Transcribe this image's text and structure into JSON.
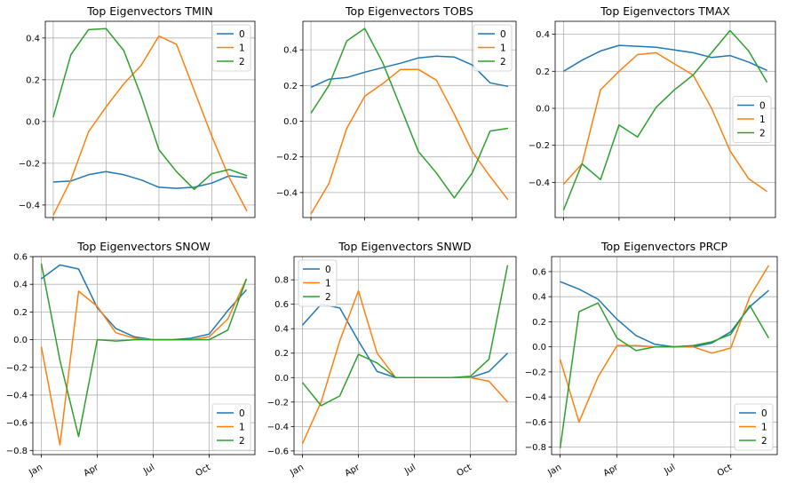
{
  "colors": {
    "series_0": "#1f77b4",
    "series_1": "#ff7f0e",
    "series_2": "#2ca02c",
    "grid": "#b0b0b0"
  },
  "chart_data": [
    {
      "type": "line",
      "title": "Top Eigenvectors TMIN",
      "x": [
        1,
        2,
        3,
        4,
        5,
        6,
        7,
        8,
        9,
        10,
        11,
        12
      ],
      "xticks": [],
      "xticklabels": [],
      "ylim": [
        -0.46,
        0.48
      ],
      "yticks": [
        -0.4,
        -0.2,
        0.0,
        0.2,
        0.4
      ],
      "yticklabels": [
        "−0.4",
        "−0.2",
        "0.0",
        "0.2",
        "0.4"
      ],
      "grid": true,
      "legend_location": "upper right",
      "series": [
        {
          "name": "0",
          "values": [
            -0.29,
            -0.285,
            -0.255,
            -0.24,
            -0.255,
            -0.28,
            -0.315,
            -0.32,
            -0.315,
            -0.295,
            -0.26,
            -0.27
          ]
        },
        {
          "name": "1",
          "values": [
            -0.45,
            -0.28,
            -0.05,
            0.07,
            0.18,
            0.27,
            0.41,
            0.37,
            0.15,
            -0.07,
            -0.27,
            -0.43
          ]
        },
        {
          "name": "2",
          "values": [
            0.02,
            0.32,
            0.44,
            0.445,
            0.34,
            0.12,
            -0.135,
            -0.24,
            -0.325,
            -0.25,
            -0.23,
            -0.26
          ]
        }
      ]
    },
    {
      "type": "line",
      "title": "Top Eigenvectors TOBS",
      "x": [
        1,
        2,
        3,
        4,
        5,
        6,
        7,
        8,
        9,
        10,
        11,
        12
      ],
      "xticks": [],
      "xticklabels": [],
      "ylim": [
        -0.54,
        0.56
      ],
      "yticks": [
        -0.4,
        -0.2,
        0.0,
        0.2,
        0.4
      ],
      "yticklabels": [
        "−0.4",
        "−0.2",
        "0.0",
        "0.2",
        "0.4"
      ],
      "grid": true,
      "legend_location": "upper right",
      "series": [
        {
          "name": "0",
          "values": [
            0.19,
            0.235,
            0.245,
            0.275,
            0.3,
            0.325,
            0.355,
            0.365,
            0.36,
            0.315,
            0.215,
            0.195
          ]
        },
        {
          "name": "1",
          "values": [
            -0.52,
            -0.35,
            -0.04,
            0.14,
            0.21,
            0.29,
            0.29,
            0.23,
            0.04,
            -0.17,
            -0.31,
            -0.44
          ]
        },
        {
          "name": "2",
          "values": [
            0.045,
            0.2,
            0.45,
            0.52,
            0.33,
            0.08,
            -0.17,
            -0.29,
            -0.43,
            -0.29,
            -0.055,
            -0.04
          ]
        }
      ]
    },
    {
      "type": "line",
      "title": "Top Eigenvectors TMAX",
      "x": [
        1,
        2,
        3,
        4,
        5,
        6,
        7,
        8,
        9,
        10,
        11,
        12
      ],
      "xticks": [],
      "xticklabels": [],
      "ylim": [
        -0.59,
        0.47
      ],
      "yticks": [
        -0.4,
        -0.2,
        0.0,
        0.2,
        0.4
      ],
      "yticklabels": [
        "−0.4",
        "−0.2",
        "0.0",
        "0.2",
        "0.4"
      ],
      "grid": true,
      "legend_location": "center right",
      "series": [
        {
          "name": "0",
          "values": [
            0.2,
            0.26,
            0.31,
            0.34,
            0.335,
            0.33,
            0.315,
            0.3,
            0.275,
            0.285,
            0.25,
            0.205
          ]
        },
        {
          "name": "1",
          "values": [
            -0.41,
            -0.3,
            0.1,
            0.2,
            0.29,
            0.3,
            0.24,
            0.18,
            0.0,
            -0.23,
            -0.38,
            -0.45
          ]
        },
        {
          "name": "2",
          "values": [
            -0.55,
            -0.3,
            -0.385,
            -0.09,
            -0.155,
            0.005,
            0.1,
            0.18,
            0.3,
            0.42,
            0.31,
            0.14
          ]
        }
      ]
    },
    {
      "type": "line",
      "title": "Top Eigenvectors SNOW",
      "x": [
        1,
        2,
        3,
        4,
        5,
        6,
        7,
        8,
        9,
        10,
        11,
        12
      ],
      "xticks": [
        1,
        4,
        7,
        10
      ],
      "xticklabels": [
        "Jan",
        "Apr",
        "Jul",
        "Oct"
      ],
      "ylim": [
        -0.83,
        0.6
      ],
      "yticks": [
        -0.8,
        -0.6,
        -0.4,
        -0.2,
        0.0,
        0.2,
        0.4,
        0.6
      ],
      "yticklabels": [
        "−0.8",
        "−0.6",
        "−0.4",
        "−0.2",
        "0.0",
        "0.2",
        "0.4",
        "0.6"
      ],
      "grid": true,
      "legend_location": "lower right",
      "series": [
        {
          "name": "0",
          "values": [
            0.44,
            0.54,
            0.51,
            0.23,
            0.08,
            0.02,
            0.0,
            0.0,
            0.01,
            0.04,
            0.21,
            0.36
          ]
        },
        {
          "name": "1",
          "values": [
            -0.05,
            -0.76,
            0.35,
            0.24,
            0.05,
            0.01,
            0.0,
            0.0,
            0.0,
            0.02,
            0.15,
            0.44
          ]
        },
        {
          "name": "2",
          "values": [
            0.55,
            -0.15,
            -0.7,
            0.0,
            -0.01,
            0.0,
            0.0,
            0.0,
            0.0,
            0.0,
            0.07,
            0.44
          ]
        }
      ]
    },
    {
      "type": "line",
      "title": "Top Eigenvectors SNWD",
      "x": [
        1,
        2,
        3,
        4,
        5,
        6,
        7,
        8,
        9,
        10,
        11,
        12
      ],
      "xticks": [
        1,
        4,
        7,
        10
      ],
      "xticklabels": [
        "Jan",
        "Apr",
        "Jul",
        "Oct"
      ],
      "ylim": [
        -0.63,
        0.99
      ],
      "yticks": [
        -0.6,
        -0.4,
        -0.2,
        0.0,
        0.2,
        0.4,
        0.6,
        0.8
      ],
      "yticklabels": [
        "−0.6",
        "−0.4",
        "−0.2",
        "0.0",
        "0.2",
        "0.4",
        "0.6",
        "0.8"
      ],
      "grid": true,
      "legend_location": "upper left",
      "series": [
        {
          "name": "0",
          "values": [
            0.43,
            0.6,
            0.57,
            0.3,
            0.05,
            0.0,
            0.0,
            0.0,
            0.0,
            0.0,
            0.05,
            0.2
          ]
        },
        {
          "name": "1",
          "values": [
            -0.54,
            -0.2,
            0.3,
            0.71,
            0.2,
            0.0,
            0.0,
            0.0,
            0.0,
            0.0,
            -0.03,
            -0.2
          ]
        },
        {
          "name": "2",
          "values": [
            -0.04,
            -0.23,
            -0.15,
            0.19,
            0.12,
            0.0,
            0.0,
            0.0,
            0.0,
            0.01,
            0.15,
            0.92
          ]
        }
      ]
    },
    {
      "type": "line",
      "title": "Top Eigenvectors PRCP",
      "x": [
        1,
        2,
        3,
        4,
        5,
        6,
        7,
        8,
        9,
        10,
        11,
        12
      ],
      "xticks": [
        1,
        4,
        7,
        10
      ],
      "xticklabels": [
        "Jan",
        "Apr",
        "Jul",
        "Oct"
      ],
      "ylim": [
        -0.86,
        0.72
      ],
      "yticks": [
        -0.8,
        -0.6,
        -0.4,
        -0.2,
        0.0,
        0.2,
        0.4,
        0.6
      ],
      "yticklabels": [
        "−0.8",
        "−0.6",
        "−0.4",
        "−0.2",
        "0.0",
        "0.2",
        "0.4",
        "0.6"
      ],
      "grid": true,
      "legend_location": "lower right",
      "series": [
        {
          "name": "0",
          "values": [
            0.52,
            0.46,
            0.38,
            0.22,
            0.09,
            0.02,
            0.0,
            0.0,
            0.03,
            0.12,
            0.32,
            0.45
          ]
        },
        {
          "name": "1",
          "values": [
            -0.1,
            -0.6,
            -0.24,
            0.01,
            0.01,
            0.0,
            0.0,
            0.0,
            -0.05,
            -0.01,
            0.4,
            0.65
          ]
        },
        {
          "name": "2",
          "values": [
            -0.81,
            0.28,
            0.35,
            0.07,
            -0.03,
            0.0,
            0.0,
            0.01,
            0.04,
            0.1,
            0.33,
            0.07
          ]
        }
      ]
    }
  ]
}
